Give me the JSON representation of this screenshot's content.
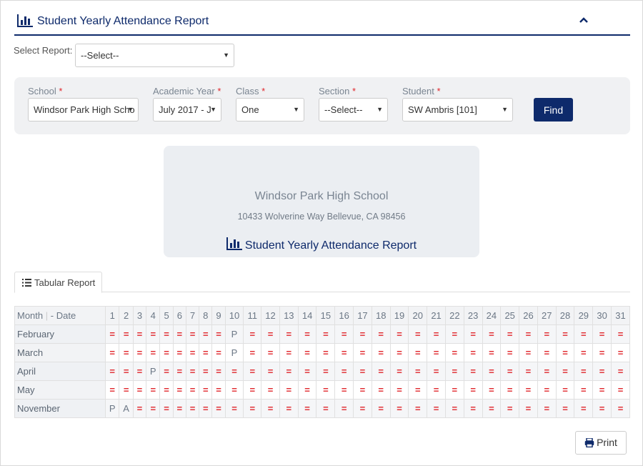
{
  "header": {
    "title": "Student Yearly Attendance Report",
    "collapse_icon": "chevron-up-icon",
    "title_icon": "bar-chart-icon"
  },
  "select_report": {
    "label": "Select Report:",
    "value": "--Select--"
  },
  "filters": {
    "school": {
      "label": "School",
      "value": "Windsor Park High Scho"
    },
    "academic_year": {
      "label": "Academic Year",
      "value": "July 2017 - J"
    },
    "class": {
      "label": "Class",
      "value": "One"
    },
    "section": {
      "label": "Section",
      "value": "--Select--"
    },
    "student": {
      "label": "Student",
      "value": "SW Ambris [101]"
    },
    "required_mark": "*",
    "find_label": "Find"
  },
  "report_card": {
    "school_name": "Windsor Park High School",
    "address": "10433 Wolverine Way Bellevue, CA 98456",
    "title": "Student Yearly Attendance Report"
  },
  "tabs": [
    {
      "label": "Tabular Report",
      "icon": "list-icon",
      "active": true
    }
  ],
  "table": {
    "month_header": "Month",
    "date_header": "- Date",
    "days": [
      "1",
      "2",
      "3",
      "4",
      "5",
      "6",
      "7",
      "8",
      "9",
      "10",
      "11",
      "12",
      "13",
      "14",
      "15",
      "16",
      "17",
      "18",
      "19",
      "20",
      "21",
      "22",
      "23",
      "24",
      "25",
      "26",
      "27",
      "28",
      "29",
      "30",
      "31"
    ],
    "rows": [
      {
        "month": "February",
        "cells": [
          "=",
          "=",
          "=",
          "=",
          "=",
          "=",
          "=",
          "=",
          "=",
          "P",
          "=",
          "=",
          "=",
          "=",
          "=",
          "=",
          "=",
          "=",
          "=",
          "=",
          "=",
          "=",
          "=",
          "=",
          "=",
          "=",
          "=",
          "=",
          "=",
          "=",
          "="
        ]
      },
      {
        "month": "March",
        "cells": [
          "=",
          "=",
          "=",
          "=",
          "=",
          "=",
          "=",
          "=",
          "=",
          "P",
          "=",
          "=",
          "=",
          "=",
          "=",
          "=",
          "=",
          "=",
          "=",
          "=",
          "=",
          "=",
          "=",
          "=",
          "=",
          "=",
          "=",
          "=",
          "=",
          "=",
          "="
        ]
      },
      {
        "month": "April",
        "cells": [
          "=",
          "=",
          "=",
          "P",
          "=",
          "=",
          "=",
          "=",
          "=",
          "=",
          "=",
          "=",
          "=",
          "=",
          "=",
          "=",
          "=",
          "=",
          "=",
          "=",
          "=",
          "=",
          "=",
          "=",
          "=",
          "=",
          "=",
          "=",
          "=",
          "=",
          "="
        ]
      },
      {
        "month": "May",
        "cells": [
          "=",
          "=",
          "=",
          "=",
          "=",
          "=",
          "=",
          "=",
          "=",
          "=",
          "=",
          "=",
          "=",
          "=",
          "=",
          "=",
          "=",
          "=",
          "=",
          "=",
          "=",
          "=",
          "=",
          "=",
          "=",
          "=",
          "=",
          "=",
          "=",
          "=",
          "="
        ]
      },
      {
        "month": "November",
        "cells": [
          "P",
          "A",
          "=",
          "=",
          "=",
          "=",
          "=",
          "=",
          "=",
          "=",
          "=",
          "=",
          "=",
          "=",
          "=",
          "=",
          "=",
          "=",
          "=",
          "=",
          "=",
          "=",
          "=",
          "=",
          "=",
          "=",
          "=",
          "=",
          "=",
          "=",
          "="
        ]
      }
    ]
  },
  "print_label": "Print",
  "colors": {
    "brand": "#0e2a6b",
    "absent_marker": "#e0262b",
    "panel_bg": "#f0f1f3"
  }
}
